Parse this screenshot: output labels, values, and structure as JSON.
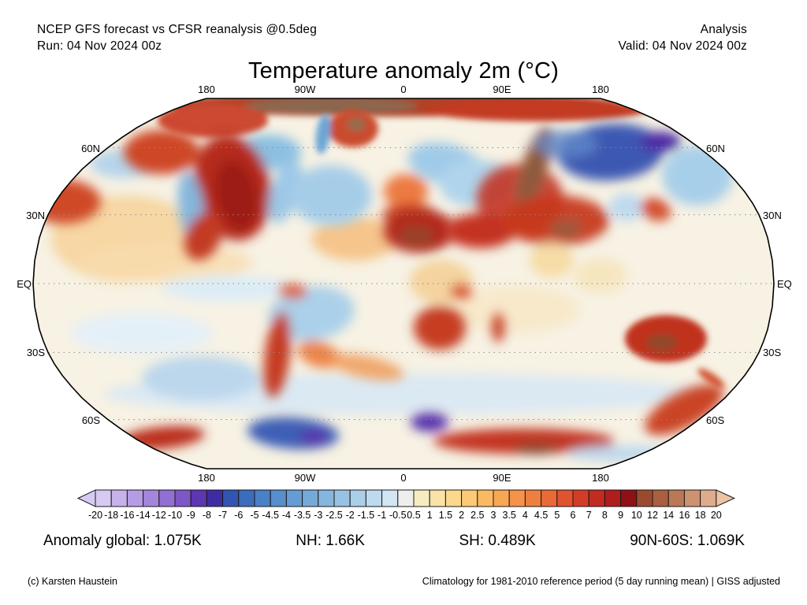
{
  "header": {
    "left_line1": "NCEP GFS forecast vs CFSR reanalysis @0.5deg",
    "left_line2": "Run: 04 Nov 2024 00z",
    "right_line1": "Analysis",
    "right_line2": "Valid: 04 Nov 2024 00z"
  },
  "title": "Temperature anomaly 2m (°C)",
  "map": {
    "lon_labels_top": [
      "180",
      "90W",
      "0",
      "90E",
      "180"
    ],
    "lon_labels_bottom": [
      "180",
      "90W",
      "0",
      "90E",
      "180"
    ],
    "lat_labels_left": [
      "60N",
      "30N",
      "EQ",
      "30S",
      "60S"
    ],
    "lat_labels_right": [
      "60N",
      "30N",
      "EQ",
      "30S",
      "60S"
    ]
  },
  "colorbar": {
    "tick_labels": [
      "-20",
      "-18",
      "-16",
      "-14",
      "-12",
      "-10",
      "-9",
      "-8",
      "-7",
      "-6",
      "-5",
      "-4.5",
      "-4",
      "-3.5",
      "-3",
      "-2.5",
      "-2",
      "-1.5",
      "-1",
      "-0.5",
      "0.5",
      "1",
      "1.5",
      "2",
      "2.5",
      "3",
      "3.5",
      "4",
      "4.5",
      "5",
      "6",
      "7",
      "8",
      "9",
      "10",
      "12",
      "14",
      "16",
      "18",
      "20"
    ],
    "cell_colors": [
      "#d6c9f3",
      "#c7b2ec",
      "#b69ce5",
      "#a486dd",
      "#9170d3",
      "#7d57c5",
      "#5d36b0",
      "#3e2da2",
      "#3355b2",
      "#3c6cbc",
      "#4a80c6",
      "#578ecc",
      "#659cd3",
      "#75aad8",
      "#86b6de",
      "#98c2e4",
      "#abcee9",
      "#bedaee",
      "#d2e6f4",
      "#eeeeec",
      "#f6ecc0",
      "#fae3a8",
      "#fcd88e",
      "#fcca74",
      "#fab962",
      "#f8a755",
      "#f49349",
      "#ef7f3f",
      "#e96a37",
      "#e1532e",
      "#d33d27",
      "#c22b20",
      "#b01d1d",
      "#8f1015",
      "#9c4a2e",
      "#aa5f40",
      "#bb7856",
      "#cd9270",
      "#deac8c"
    ],
    "under_arrow_color": "#d7cbf4",
    "over_arrow_color": "#eac4a4",
    "outline_color": "#1a1a1a"
  },
  "stats": {
    "global": "Anomaly global: 1.075K",
    "nh": "NH: 1.66K",
    "sh": "SH: 0.489K",
    "n90s60": "90N-60S: 1.069K"
  },
  "footer": {
    "left": "(c) Karsten Haustein",
    "right": "Climatology for 1981-2010 reference period (5 day running mean) | GISS adjusted"
  },
  "chart_data": {
    "type": "heatmap",
    "title": "Temperature anomaly 2m (°C)",
    "model": "NCEP GFS forecast vs CFSR reanalysis @0.5deg",
    "mode": "Analysis",
    "run": "04 Nov 2024 00z",
    "valid": "04 Nov 2024 00z",
    "units": "°C",
    "projection": "Robinson world map",
    "colorbar_boundaries": [
      -20,
      -18,
      -16,
      -14,
      -12,
      -10,
      -9,
      -8,
      -7,
      -6,
      -5,
      -4.5,
      -4,
      -3.5,
      -3,
      -2.5,
      -2,
      -1.5,
      -1,
      -0.5,
      0.5,
      1,
      1.5,
      2,
      2.5,
      3,
      3.5,
      4,
      4.5,
      5,
      6,
      7,
      8,
      9,
      10,
      12,
      14,
      16,
      18,
      20
    ],
    "summary_values": {
      "global_anomaly_K": 1.075,
      "nh_anomaly_K": 1.66,
      "sh_anomaly_K": 0.489,
      "band_90N_60S_K": 1.069
    },
    "climatology": "1981-2010 reference period (5 day running mean) | GISS adjusted",
    "grid_parallels_labeled": [
      "60N",
      "30N",
      "EQ",
      "30S",
      "60S"
    ],
    "grid_meridians_labeled": [
      "180",
      "90W",
      "0",
      "90E",
      "180"
    ]
  }
}
